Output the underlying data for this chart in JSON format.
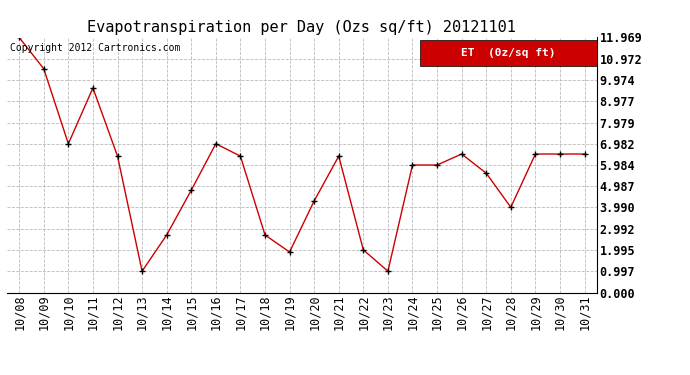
{
  "title": "Evapotranspiration per Day (Ozs sq/ft) 20121101",
  "copyright": "Copyright 2012 Cartronics.com",
  "legend_label": "ET  (0z/sq ft)",
  "x_labels": [
    "10/08",
    "10/09",
    "10/10",
    "10/11",
    "10/12",
    "10/13",
    "10/14",
    "10/15",
    "10/16",
    "10/17",
    "10/18",
    "10/19",
    "10/20",
    "10/21",
    "10/22",
    "10/23",
    "10/24",
    "10/25",
    "10/26",
    "10/27",
    "10/28",
    "10/29",
    "10/30",
    "10/31"
  ],
  "y_values": [
    11.969,
    10.5,
    6.982,
    9.6,
    6.4,
    1.0,
    2.7,
    4.8,
    6.982,
    6.4,
    2.7,
    1.9,
    4.3,
    6.4,
    2.0,
    1.0,
    5.984,
    5.984,
    6.5,
    5.6,
    4.0,
    6.5,
    6.5,
    6.5
  ],
  "y_ticks": [
    0.0,
    0.997,
    1.995,
    2.992,
    3.99,
    4.987,
    5.984,
    6.982,
    7.979,
    8.977,
    9.974,
    10.972,
    11.969
  ],
  "line_color": "#cc0000",
  "marker_color": "#000000",
  "bg_color": "#ffffff",
  "grid_color": "#bbbbbb",
  "legend_bg": "#cc0000",
  "legend_text_color": "#ffffff",
  "title_fontsize": 11,
  "tick_fontsize": 8.5,
  "copyright_fontsize": 7,
  "ylim": [
    0.0,
    11.969
  ],
  "xlim": [
    -0.5,
    23.5
  ]
}
